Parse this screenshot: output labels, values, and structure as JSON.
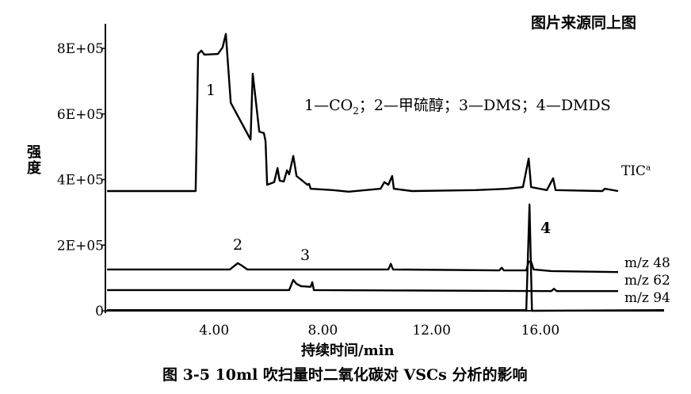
{
  "source_note": "图片来源同上图",
  "caption": "图 3-5   10ml 吹扫量时二氧化碳对 VSCs 分析的影响",
  "chart_data": {
    "type": "line",
    "title": "",
    "xlabel": "持续时间/min",
    "ylabel": "强度",
    "xlim": [
      0,
      20.55
    ],
    "ylim": [
      0,
      875000
    ],
    "x_ticks": [
      4,
      8,
      12,
      16
    ],
    "x_tick_labels": [
      "4.00",
      "8.00",
      "12.00",
      "16.00"
    ],
    "y_ticks": [
      0,
      200000,
      400000,
      600000,
      800000
    ],
    "y_tick_labels": [
      "0",
      "2E+05",
      "4E+05",
      "6E+05",
      "8E+05"
    ],
    "grid": false,
    "legend_text": {
      "p1": "1—CO",
      "p1_sub": "2",
      "rest": "；2—甲硫醇；3—DMS；4—DMDS"
    },
    "peak_labels": [
      "1",
      "2",
      "3",
      "4"
    ],
    "series": [
      {
        "name": "TIC",
        "name_sup": "a",
        "color": "#000000",
        "points": [
          [
            0.06,
            365000
          ],
          [
            3.32,
            365000
          ],
          [
            3.41,
            783000
          ],
          [
            3.53,
            793000
          ],
          [
            3.64,
            781000
          ],
          [
            4.14,
            783000
          ],
          [
            4.31,
            803000
          ],
          [
            4.43,
            844000
          ],
          [
            4.61,
            634000
          ],
          [
            5.34,
            522000
          ],
          [
            5.42,
            723000
          ],
          [
            5.51,
            658000
          ],
          [
            5.66,
            546000
          ],
          [
            5.83,
            542000
          ],
          [
            5.89,
            517000
          ],
          [
            5.95,
            384000
          ],
          [
            6.21,
            392000
          ],
          [
            6.33,
            435000
          ],
          [
            6.41,
            397000
          ],
          [
            6.56,
            394000
          ],
          [
            6.68,
            428000
          ],
          [
            6.76,
            416000
          ],
          [
            6.91,
            472000
          ],
          [
            7.03,
            411000
          ],
          [
            7.43,
            384000
          ],
          [
            7.49,
            387000
          ],
          [
            7.55,
            372000
          ],
          [
            8.37,
            368000
          ],
          [
            8.95,
            363000
          ],
          [
            10.12,
            372000
          ],
          [
            10.26,
            392000
          ],
          [
            10.41,
            384000
          ],
          [
            10.55,
            411000
          ],
          [
            10.61,
            372000
          ],
          [
            11.28,
            365000
          ],
          [
            13.62,
            368000
          ],
          [
            14.78,
            372000
          ],
          [
            15.36,
            377000
          ],
          [
            15.57,
            464000
          ],
          [
            15.66,
            377000
          ],
          [
            16.24,
            368000
          ],
          [
            16.47,
            404000
          ],
          [
            16.56,
            368000
          ],
          [
            18.28,
            365000
          ],
          [
            18.37,
            372000
          ],
          [
            18.86,
            365000
          ]
        ]
      },
      {
        "name": "m/z 48",
        "color": "#000000",
        "points": [
          [
            0.06,
            126000
          ],
          [
            4.58,
            126000
          ],
          [
            4.72,
            135000
          ],
          [
            4.87,
            145000
          ],
          [
            5.01,
            138000
          ],
          [
            5.22,
            126000
          ],
          [
            10.41,
            126000
          ],
          [
            10.5,
            143000
          ],
          [
            10.58,
            126000
          ],
          [
            14.49,
            123000
          ],
          [
            14.58,
            131000
          ],
          [
            14.66,
            123000
          ],
          [
            15.48,
            123000
          ],
          [
            15.57,
            150000
          ],
          [
            15.66,
            150000
          ],
          [
            15.75,
            126000
          ],
          [
            16.4,
            121000
          ],
          [
            18.86,
            118000
          ]
        ]
      },
      {
        "name": "m/z 62",
        "color": "#000000",
        "points": [
          [
            0.06,
            63000
          ],
          [
            6.76,
            63000
          ],
          [
            6.91,
            94000
          ],
          [
            7.03,
            82000
          ],
          [
            7.2,
            75000
          ],
          [
            7.55,
            73000
          ],
          [
            7.61,
            87000
          ],
          [
            7.67,
            63000
          ],
          [
            16.4,
            60000
          ],
          [
            16.5,
            67000
          ],
          [
            16.6,
            60000
          ],
          [
            18.86,
            60000
          ]
        ]
      },
      {
        "name": "m/z 94",
        "color": "#000000",
        "points": [
          [
            0.06,
            2000
          ],
          [
            15.42,
            2000
          ],
          [
            15.48,
            0
          ],
          [
            15.6,
            324000
          ],
          [
            15.69,
            0
          ],
          [
            20.55,
            2000
          ]
        ]
      }
    ]
  }
}
